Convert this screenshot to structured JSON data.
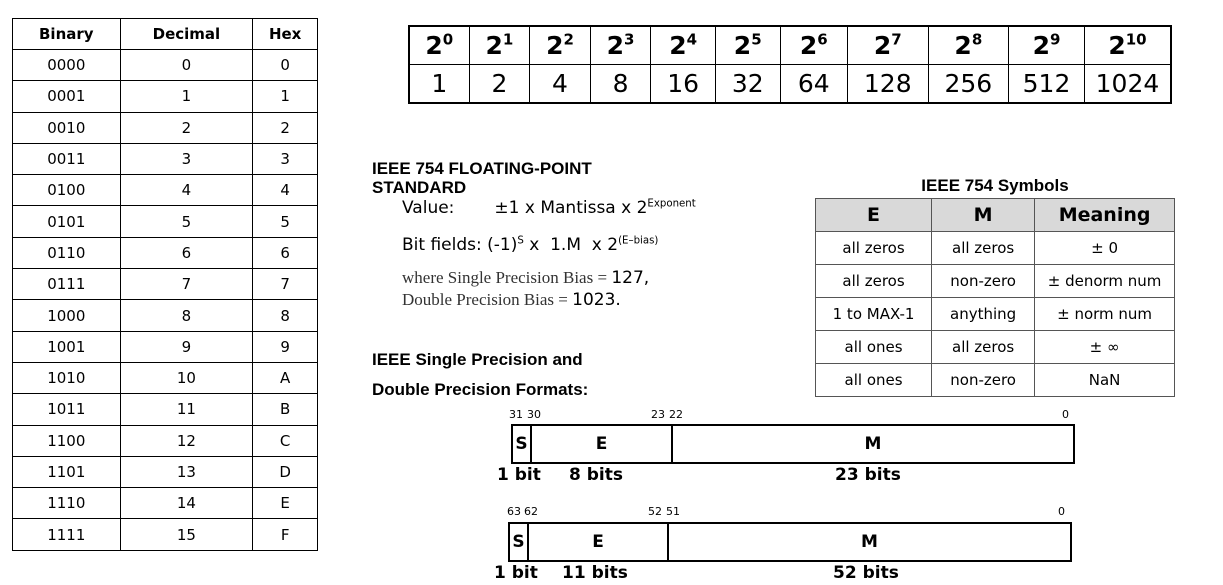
{
  "hex_table": {
    "headers": [
      "Binary",
      "Decimal",
      "Hex"
    ],
    "rows": [
      [
        "0000",
        "0",
        "0"
      ],
      [
        "0001",
        "1",
        "1"
      ],
      [
        "0010",
        "2",
        "2"
      ],
      [
        "0011",
        "3",
        "3"
      ],
      [
        "0100",
        "4",
        "4"
      ],
      [
        "0101",
        "5",
        "5"
      ],
      [
        "0110",
        "6",
        "6"
      ],
      [
        "0111",
        "7",
        "7"
      ],
      [
        "1000",
        "8",
        "8"
      ],
      [
        "1001",
        "9",
        "9"
      ],
      [
        "1010",
        "10",
        "A"
      ],
      [
        "1011",
        "11",
        "B"
      ],
      [
        "1100",
        "12",
        "C"
      ],
      [
        "1101",
        "13",
        "D"
      ],
      [
        "1110",
        "14",
        "E"
      ],
      [
        "1111",
        "15",
        "F"
      ]
    ]
  },
  "powers": {
    "base": "2",
    "exponents": [
      "0",
      "1",
      "2",
      "3",
      "4",
      "5",
      "6",
      "7",
      "8",
      "9",
      "10"
    ],
    "values": [
      "1",
      "2",
      "4",
      "8",
      "16",
      "32",
      "64",
      "128",
      "256",
      "512",
      "1024"
    ]
  },
  "ieee": {
    "title_line1": "IEEE 754 FLOATING-POINT",
    "title_line2": "STANDARD",
    "value_label": "Value:",
    "value_formula": "±1 x Mantissa x 2",
    "value_exp": "Exponent",
    "bitfields_label": "Bit fields:",
    "bf_a": "(-1)",
    "bf_s": "S",
    "bf_b": " x  1.M  x 2",
    "bf_exp": "(E–bias)",
    "single_bias_text": "where Single Precision Bias = ",
    "single_bias": "127,",
    "double_bias_text": "Double Precision Bias = ",
    "double_bias": "1023.",
    "formats_line1": "IEEE Single Precision and",
    "formats_line2": "Double Precision Formats:"
  },
  "symbols": {
    "title": "IEEE 754 Symbols",
    "headers": [
      "E",
      "M",
      "Meaning"
    ],
    "rows": [
      [
        "all zeros",
        "all zeros",
        "± 0"
      ],
      [
        "all zeros",
        "non-zero",
        "± denorm num"
      ],
      [
        "1 to MAX-1",
        "anything",
        "± norm num"
      ],
      [
        "all ones",
        "all zeros",
        "± ∞"
      ],
      [
        "all ones",
        "non-zero",
        "NaN"
      ]
    ]
  },
  "single": {
    "bits": [
      "31",
      "30",
      "23",
      "22",
      "0"
    ],
    "fields": [
      "S",
      "E",
      "M"
    ],
    "sizes": [
      "1 bit",
      "8 bits",
      "23 bits"
    ]
  },
  "double": {
    "bits": [
      "63",
      "62",
      "52",
      "51",
      "0"
    ],
    "fields": [
      "S",
      "E",
      "M"
    ],
    "sizes": [
      "1 bit",
      "11 bits",
      "52 bits"
    ]
  }
}
